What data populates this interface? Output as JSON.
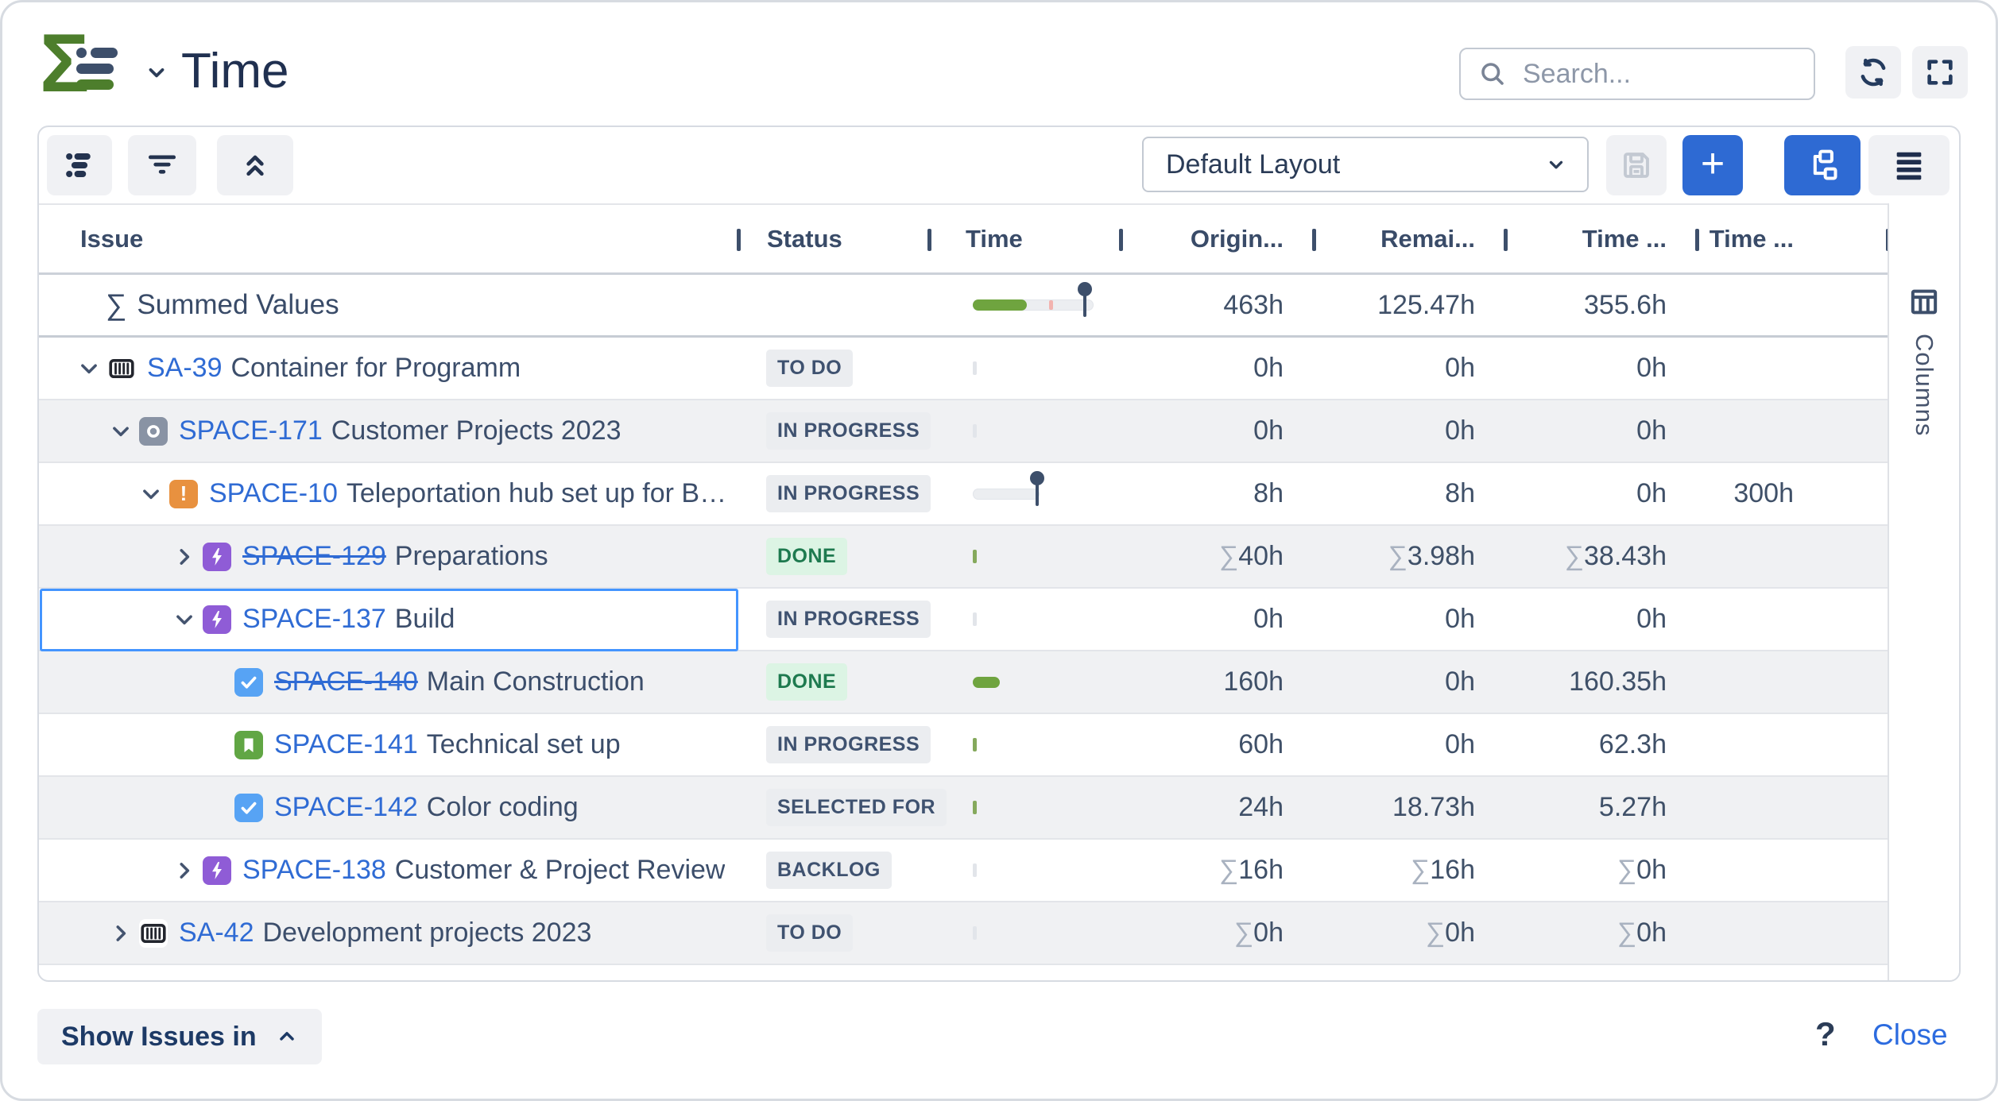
{
  "header": {
    "title": "Time",
    "search_placeholder": "Search..."
  },
  "toolbar": {
    "layout_value": "Default Layout"
  },
  "table": {
    "columns": [
      "Issue",
      "Status",
      "Time",
      "Origin...",
      "Remai...",
      "Time ...",
      "Time ..."
    ],
    "columns_tab_label": "Columns",
    "summary_row": {
      "sigma": "∑",
      "label": "Summed Values",
      "values": [
        "463h",
        "125.47h",
        "355.6h",
        ""
      ],
      "progress": {
        "green_pct": 45,
        "warn_pct": 63,
        "pin_pct": 93
      }
    },
    "rows": [
      {
        "key": "SA-39",
        "summary": "Container for Programm",
        "level": 0,
        "chevron": "down",
        "icon": "container",
        "struck": false,
        "selected": false,
        "status": "TO DO",
        "status_type": "gray",
        "time": {
          "kind": "tick",
          "color": "gray"
        },
        "values": [
          {
            "s": false,
            "t": "0h"
          },
          {
            "s": false,
            "t": "0h"
          },
          {
            "s": false,
            "t": "0h"
          },
          {
            "s": false,
            "t": ""
          }
        ]
      },
      {
        "key": "SPACE-171",
        "summary": "Customer Projects 2023",
        "level": 1,
        "chevron": "down",
        "icon": "program-o",
        "struck": false,
        "selected": false,
        "status": "IN PROGRESS",
        "status_type": "gray",
        "time": {
          "kind": "tick",
          "color": "gray"
        },
        "values": [
          {
            "s": false,
            "t": "0h"
          },
          {
            "s": false,
            "t": "0h"
          },
          {
            "s": false,
            "t": "0h"
          },
          {
            "s": false,
            "t": ""
          }
        ]
      },
      {
        "key": "SPACE-10",
        "summary": "Teleportation hub set up for Bey...",
        "level": 2,
        "chevron": "down",
        "icon": "alert",
        "struck": false,
        "selected": false,
        "status": "IN PROGRESS",
        "status_type": "gray",
        "time": {
          "kind": "bar-pin",
          "width": 84,
          "pin_pct": 97
        },
        "values": [
          {
            "s": false,
            "t": "8h"
          },
          {
            "s": false,
            "t": "8h"
          },
          {
            "s": false,
            "t": "0h"
          },
          {
            "s": false,
            "t": "300h"
          }
        ]
      },
      {
        "key": "SPACE-129",
        "summary": "Preparations",
        "level": 3,
        "chevron": "right",
        "icon": "bolt",
        "struck": true,
        "selected": false,
        "status": "DONE",
        "status_type": "green",
        "time": {
          "kind": "tick",
          "color": "green"
        },
        "values": [
          {
            "s": true,
            "t": "40h"
          },
          {
            "s": true,
            "t": "3.98h"
          },
          {
            "s": true,
            "t": "38.43h"
          },
          {
            "s": false,
            "t": ""
          }
        ]
      },
      {
        "key": "SPACE-137",
        "summary": "Build",
        "level": 3,
        "chevron": "down",
        "icon": "bolt",
        "struck": false,
        "selected": true,
        "status": "IN PROGRESS",
        "status_type": "gray",
        "time": {
          "kind": "tick",
          "color": "gray"
        },
        "values": [
          {
            "s": false,
            "t": "0h"
          },
          {
            "s": false,
            "t": "0h"
          },
          {
            "s": false,
            "t": "0h"
          },
          {
            "s": false,
            "t": ""
          }
        ]
      },
      {
        "key": "SPACE-140",
        "summary": "Main Construction",
        "level": 4,
        "chevron": "none",
        "icon": "check",
        "struck": true,
        "selected": false,
        "status": "DONE",
        "status_type": "green",
        "time": {
          "kind": "green-bar",
          "width": 34
        },
        "values": [
          {
            "s": false,
            "t": "160h"
          },
          {
            "s": false,
            "t": "0h"
          },
          {
            "s": false,
            "t": "160.35h"
          },
          {
            "s": false,
            "t": ""
          }
        ]
      },
      {
        "key": "SPACE-141",
        "summary": "Technical set up",
        "level": 4,
        "chevron": "none",
        "icon": "bookmark",
        "struck": false,
        "selected": false,
        "status": "IN PROGRESS",
        "status_type": "gray",
        "time": {
          "kind": "tick",
          "color": "green"
        },
        "values": [
          {
            "s": false,
            "t": "60h"
          },
          {
            "s": false,
            "t": "0h"
          },
          {
            "s": false,
            "t": "62.3h"
          },
          {
            "s": false,
            "t": ""
          }
        ]
      },
      {
        "key": "SPACE-142",
        "summary": "Color coding",
        "level": 4,
        "chevron": "none",
        "icon": "check",
        "struck": false,
        "selected": false,
        "status": "SELECTED FOR",
        "status_type": "gray",
        "time": {
          "kind": "tick",
          "color": "green"
        },
        "values": [
          {
            "s": false,
            "t": "24h"
          },
          {
            "s": false,
            "t": "18.73h"
          },
          {
            "s": false,
            "t": "5.27h"
          },
          {
            "s": false,
            "t": ""
          }
        ]
      },
      {
        "key": "SPACE-138",
        "summary": "Customer & Project Review",
        "level": 3,
        "chevron": "right",
        "icon": "bolt",
        "struck": false,
        "selected": false,
        "status": "BACKLOG",
        "status_type": "gray",
        "time": {
          "kind": "tick",
          "color": "gray"
        },
        "values": [
          {
            "s": true,
            "t": "16h"
          },
          {
            "s": true,
            "t": "16h"
          },
          {
            "s": true,
            "t": "0h"
          },
          {
            "s": false,
            "t": ""
          }
        ]
      },
      {
        "key": "SA-42",
        "summary": "Development projects 2023",
        "level": 1,
        "chevron": "right",
        "icon": "container",
        "struck": false,
        "selected": false,
        "status": "TO DO",
        "status_type": "gray",
        "time": {
          "kind": "tick",
          "color": "gray"
        },
        "values": [
          {
            "s": true,
            "t": "0h"
          },
          {
            "s": true,
            "t": "0h"
          },
          {
            "s": true,
            "t": "0h"
          },
          {
            "s": false,
            "t": ""
          }
        ]
      }
    ]
  },
  "footer": {
    "show_issues_label": "Show Issues in",
    "help_label": "?",
    "close_label": "Close"
  },
  "colors": {
    "accent_blue": "#2e6ad3",
    "link_blue": "#2f6bd4",
    "progress_green": "#6fa43f",
    "selected_outline": "#4495ff",
    "done_badge_bg": "#dcf4e4",
    "done_badge_text": "#1e7a4f"
  }
}
